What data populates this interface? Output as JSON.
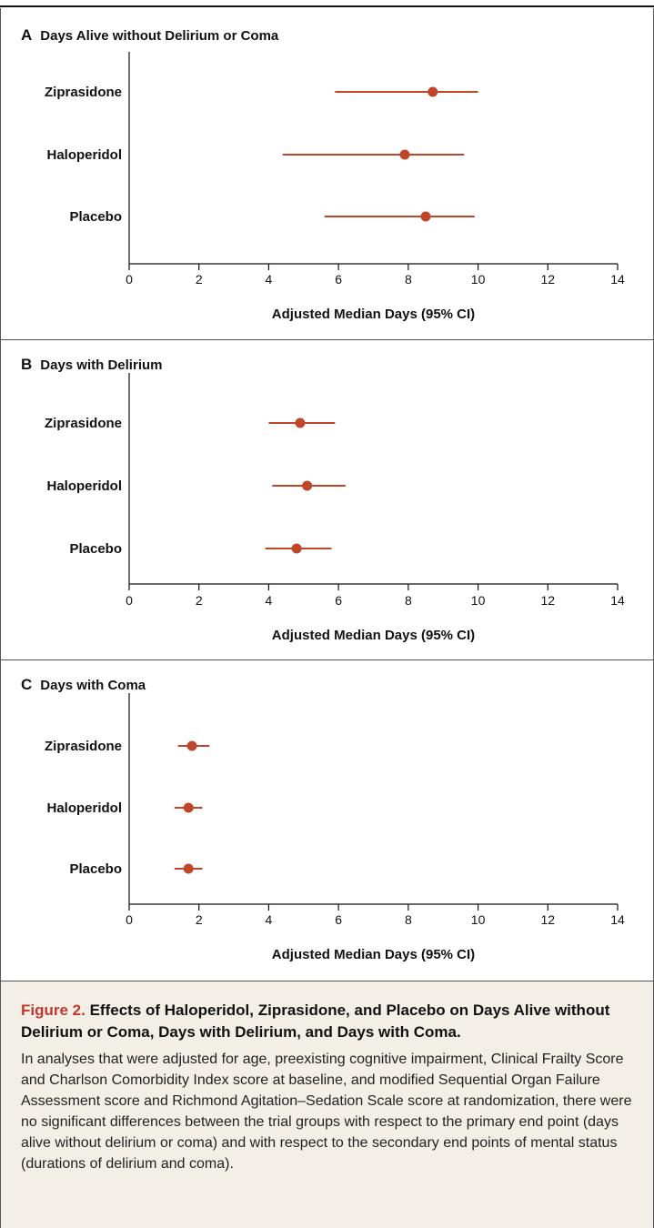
{
  "chart_data": [
    {
      "type": "scatter",
      "panel": "A",
      "title": "Days Alive without Delirium or Coma",
      "xlabel": "Adjusted Median Days (95% CI)",
      "ylabel": "",
      "xlim": [
        0,
        14
      ],
      "xticks": [
        0,
        2,
        4,
        6,
        8,
        10,
        12,
        14
      ],
      "categories": [
        "Ziprasidone",
        "Haloperidol",
        "Placebo"
      ],
      "series": [
        {
          "estimate": [
            8.7,
            7.9,
            8.5
          ],
          "ci_low": [
            5.9,
            4.4,
            5.6
          ],
          "ci_high": [
            10.0,
            9.6,
            9.9
          ]
        }
      ],
      "grid": false,
      "color": "#c0452b"
    },
    {
      "type": "scatter",
      "panel": "B",
      "title": "Days with Delirium",
      "xlabel": "Adjusted Median Days (95% CI)",
      "ylabel": "",
      "xlim": [
        0,
        14
      ],
      "xticks": [
        0,
        2,
        4,
        6,
        8,
        10,
        12,
        14
      ],
      "categories": [
        "Ziprasidone",
        "Haloperidol",
        "Placebo"
      ],
      "series": [
        {
          "estimate": [
            4.9,
            5.1,
            4.8
          ],
          "ci_low": [
            4.0,
            4.1,
            3.9
          ],
          "ci_high": [
            5.9,
            6.2,
            5.8
          ]
        }
      ],
      "grid": false,
      "color": "#c0452b"
    },
    {
      "type": "scatter",
      "panel": "C",
      "title": "Days with Coma",
      "xlabel": "Adjusted Median Days (95% CI)",
      "ylabel": "",
      "xlim": [
        0,
        14
      ],
      "xticks": [
        0,
        2,
        4,
        6,
        8,
        10,
        12,
        14
      ],
      "categories": [
        "Ziprasidone",
        "Haloperidol",
        "Placebo"
      ],
      "series": [
        {
          "estimate": [
            1.8,
            1.7,
            1.7
          ],
          "ci_low": [
            1.4,
            1.3,
            1.3
          ],
          "ci_high": [
            2.3,
            2.1,
            2.1
          ]
        }
      ],
      "grid": false,
      "color": "#c0452b"
    }
  ],
  "caption": {
    "figure_number": "Figure 2.",
    "title": " Effects of Haloperidol, Ziprasidone, and Placebo on Days Alive without Delirium or Coma, Days with Delirium, and Days with Coma.",
    "text": "In analyses that were adjusted for age, preexisting cognitive impairment, Clinical Frailty Score and Charlson Comorbidity Index score at baseline, and modified Sequential Organ Failure Assessment score and Richmond Agitation–Sedation Scale score at randomization, there were no significant differences between the trial groups with respect to the primary end point (days alive without delirium or coma) and with respect to the secondary end points of mental status (durations of delirium and coma)."
  }
}
